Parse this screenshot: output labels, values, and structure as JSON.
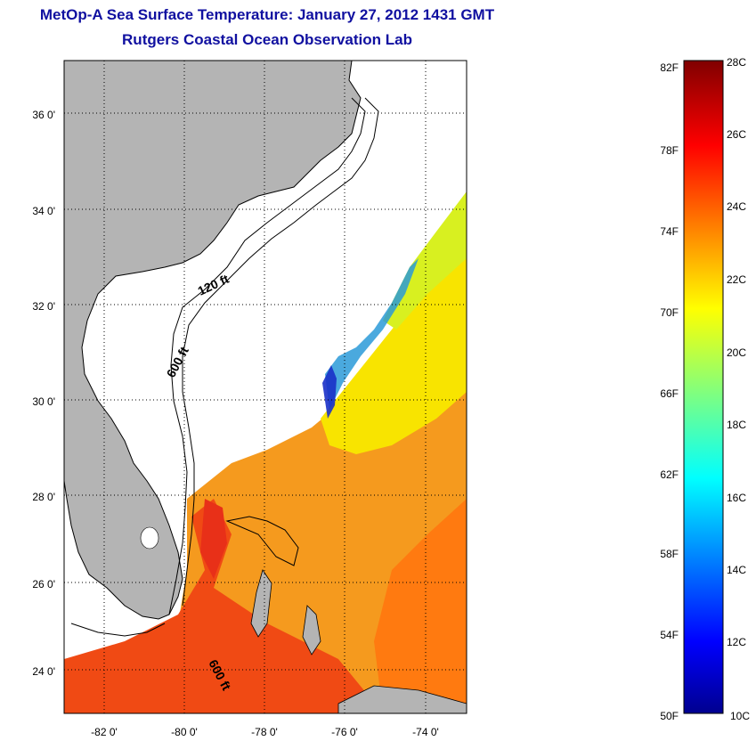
{
  "header": {
    "title": "MetOp-A Sea Surface Temperature:  January 27, 2012 1431 GMT",
    "subtitle": "Rutgers Coastal Ocean Observation Lab"
  },
  "map": {
    "lon_range": [
      -83,
      -73
    ],
    "lat_range": [
      23,
      37
    ],
    "lat_ticks": [
      "24 0'",
      "26 0'",
      "28 0'",
      "30 0'",
      "32 0'",
      "34 0'",
      "36 0'"
    ],
    "lon_ticks": [
      "-82 0'",
      "-80 0'",
      "-78 0'",
      "-76 0'",
      "-74 0'"
    ],
    "contour_labels": [
      "120 ft",
      "600 ft",
      "600 ft"
    ],
    "land_color": "#b4b4b4",
    "grid": true
  },
  "colorbar": {
    "fahrenheit_labels": [
      "82F",
      "78F",
      "74F",
      "70F",
      "66F",
      "62F",
      "58F",
      "54F",
      "50F"
    ],
    "celsius_labels": [
      "28C",
      "26C",
      "24C",
      "22C",
      "20C",
      "18C",
      "16C",
      "14C",
      "12C",
      "10C"
    ],
    "range_c": [
      10,
      28
    ],
    "colormap": "jet"
  }
}
